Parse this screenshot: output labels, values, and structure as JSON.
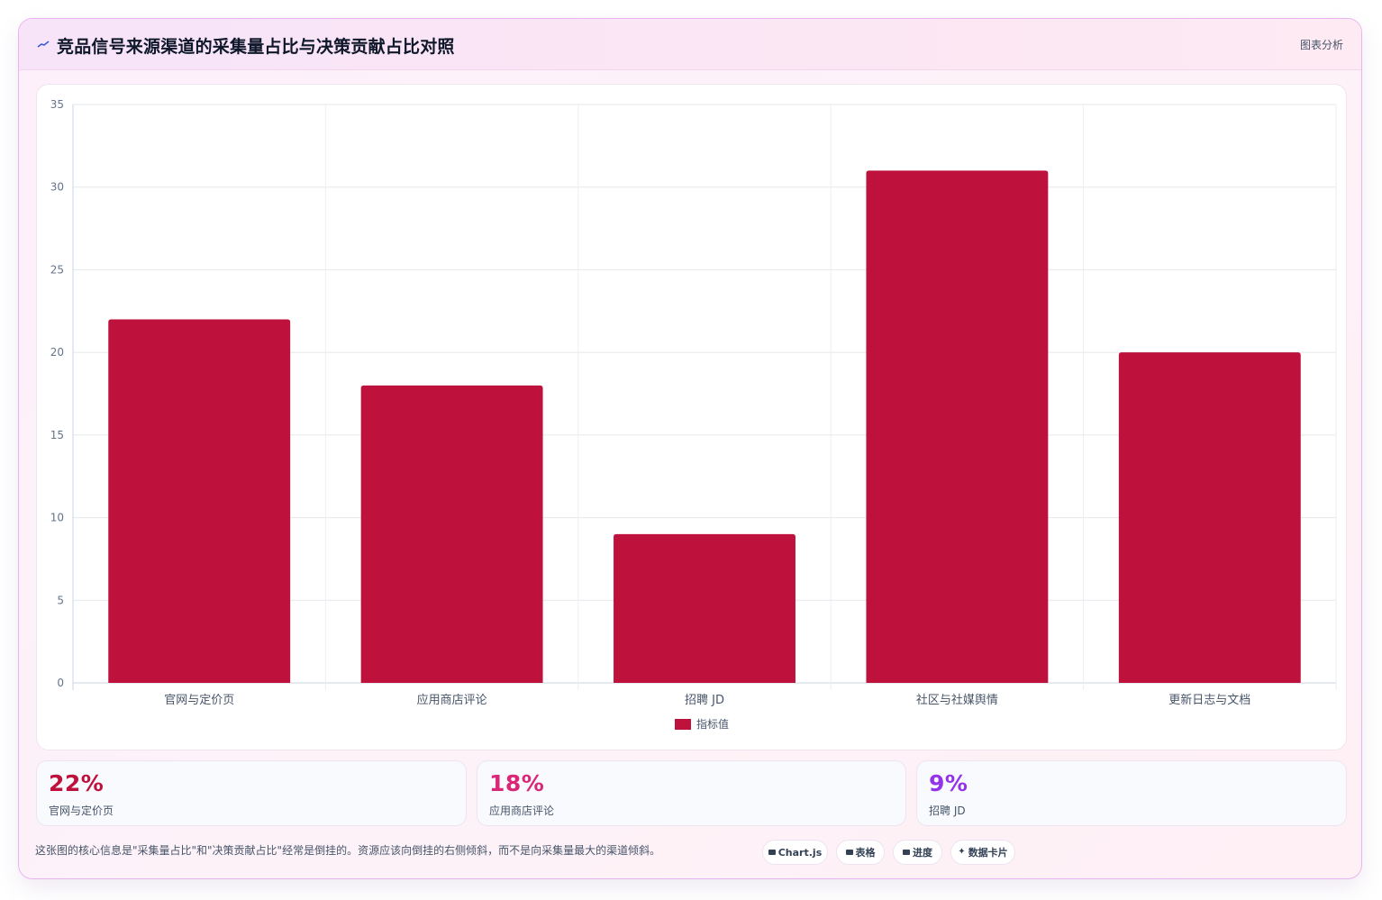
{
  "header": {
    "title": "竞品信号来源渠道的采集量占比与决策贡献占比对照",
    "right_label": "图表分析"
  },
  "chart_data": {
    "type": "bar",
    "categories": [
      "官网与定价页",
      "应用商店评论",
      "招聘 JD",
      "社区与社媒舆情",
      "更新日志与文档"
    ],
    "series": [
      {
        "name": "指标值",
        "values": [
          22,
          18,
          9,
          31,
          20
        ],
        "color": "#be123c"
      }
    ],
    "ylim": [
      0,
      35
    ],
    "yticks": [
      0,
      5,
      10,
      15,
      20,
      25,
      30,
      35
    ],
    "grid": true,
    "legend_position": "bottom"
  },
  "stats": [
    {
      "value": "22%",
      "label": "官网与定价页",
      "color": "#be123c"
    },
    {
      "value": "18%",
      "label": "应用商店评论",
      "color": "#db2777"
    },
    {
      "value": "9%",
      "label": "招聘 JD",
      "color": "#9333ea"
    }
  ],
  "footer": {
    "note": "这张图的核心信息是\"采集量占比\"和\"决策贡献占比\"经常是倒挂的。资源应该向倒挂的右侧倾斜，而不是向采集量最大的渠道倾斜。",
    "tags": [
      "Chart.js",
      "表格",
      "进度",
      "数据卡片"
    ]
  }
}
